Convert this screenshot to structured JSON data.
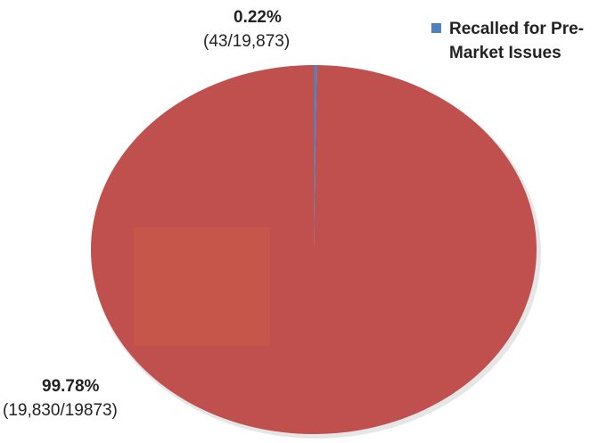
{
  "chart_data": {
    "type": "pie",
    "title": "",
    "slices": [
      {
        "label": "Recalled for Pre-Market Issues",
        "value": 0.22,
        "percent_label": "0.22%",
        "count_label": "(43/19,873)",
        "color": "#4f81bd"
      },
      {
        "label": "",
        "value": 99.78,
        "percent_label": "99.78%",
        "count_label": "(19,830/19873)",
        "color": "#c0504d"
      }
    ],
    "legend": {
      "position": "top-right",
      "entries": [
        {
          "lines": [
            "Recalled for Pre-",
            "Market Issues"
          ],
          "color": "#4f81bd"
        }
      ]
    }
  }
}
